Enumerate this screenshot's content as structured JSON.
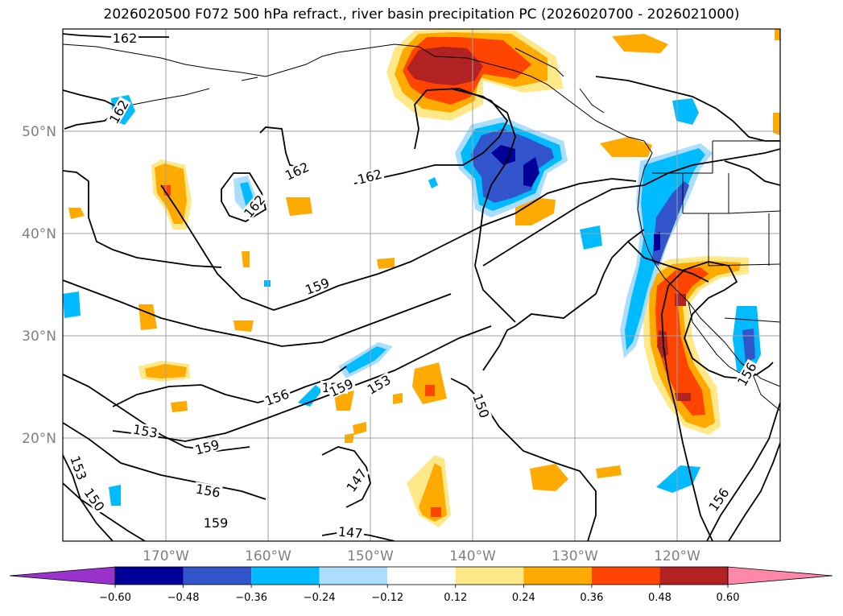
{
  "title": "2026020500 F072 500 hPa refract., river basin precipitation PC (2026020700 - 2026021000)",
  "map": {
    "lat_ticks": [
      "50°N",
      "40°N",
      "30°N",
      "20°N"
    ],
    "lon_ticks": [
      "170°W",
      "160°W",
      "150°W",
      "140°W",
      "130°W",
      "120°W"
    ],
    "contour_labels": [
      "162",
      "162",
      "162",
      "162",
      "162",
      "159",
      "159",
      "159",
      "159",
      "159",
      "156",
      "156",
      "156",
      "153",
      "153",
      "153",
      "150",
      "150",
      "147",
      "147",
      "156"
    ],
    "colors": {
      "grid": "#a0a0a0",
      "contour": "#000000",
      "coast": "#000000"
    }
  },
  "colorbar": {
    "labels": [
      "−0.60",
      "−0.48",
      "−0.36",
      "−0.24",
      "−0.12",
      "0.12",
      "0.24",
      "0.36",
      "0.48",
      "0.60"
    ],
    "colors": [
      "#9933cc",
      "#000099",
      "#3355cc",
      "#00bbff",
      "#aaddff",
      "#ffffff",
      "#ffe888",
      "#ffaa00",
      "#ff4400",
      "#b22222",
      "#ff88aa"
    ]
  }
}
